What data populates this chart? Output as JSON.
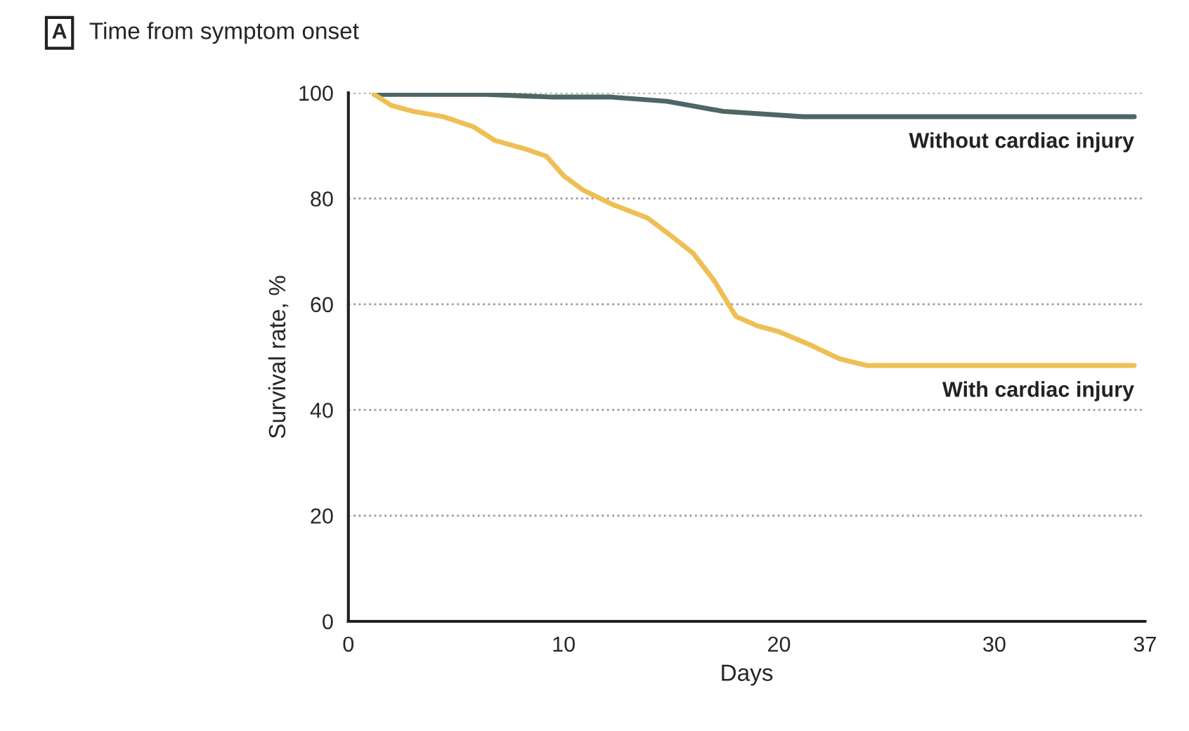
{
  "chart_data": {
    "type": "line",
    "title": "Time from symptom onset",
    "xlabel": "Days",
    "ylabel": "Survival rate, %",
    "annotations": [
      "A"
    ],
    "series": [
      {
        "name": "Without cardiac injury",
        "color": "#4f6666",
        "x": [
          1.2,
          6.4,
          9.5,
          12.2,
          14.8,
          17.4,
          21.1,
          36.5
        ],
        "values": [
          99.7,
          99.7,
          99.2,
          99.2,
          98.4,
          96.5,
          95.5,
          95.5
        ]
      },
      {
        "name": "With cardiac injury",
        "color": "#efbf55",
        "x": [
          1.2,
          2,
          3,
          4.4,
          5.8,
          6.8,
          8.2,
          9.2,
          10,
          10.9,
          12.2,
          13.9,
          15,
          16,
          17,
          18,
          19,
          20,
          21.4,
          22.8,
          24.1,
          36.5
        ],
        "values": [
          99.7,
          97.6,
          96.5,
          95.5,
          93.6,
          91,
          89.4,
          88,
          84.3,
          81.6,
          79,
          76.3,
          72.9,
          69.7,
          64.4,
          57.7,
          55.9,
          54.8,
          52.4,
          49.7,
          48.4,
          48.4
        ]
      }
    ],
    "xlim": [
      0,
      37
    ],
    "xticks": [
      0,
      10,
      20,
      30,
      37
    ],
    "ylim": [
      0,
      100
    ],
    "yticks": [
      0,
      20,
      40,
      60,
      80,
      100
    ],
    "grid": "y",
    "legend": false,
    "marker": "none",
    "line_style": "solid"
  }
}
